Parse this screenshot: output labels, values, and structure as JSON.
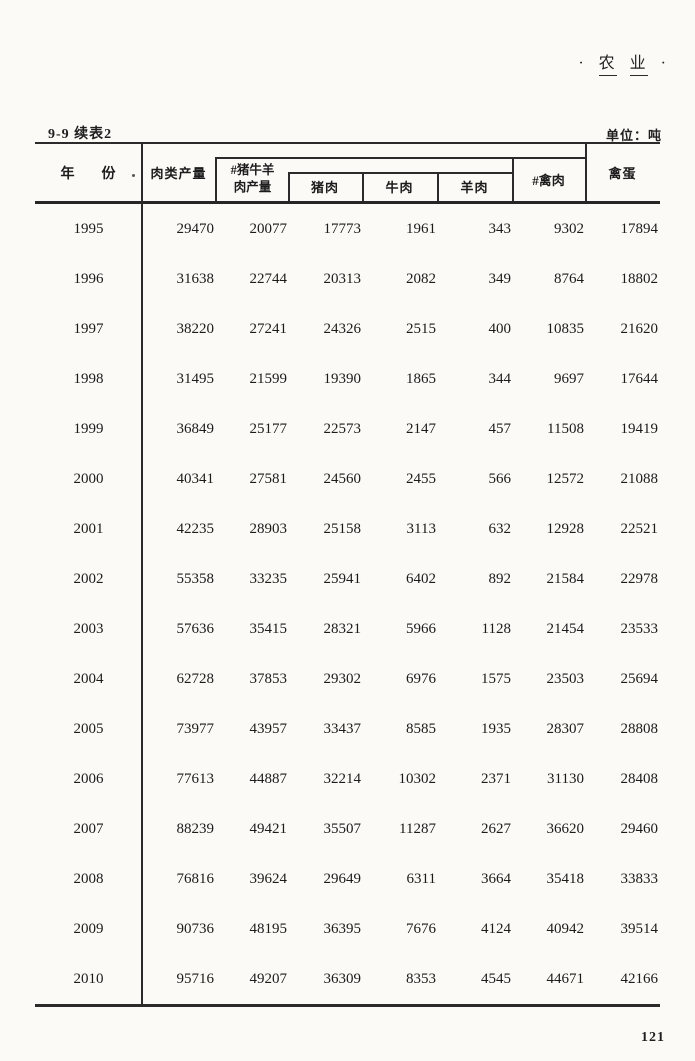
{
  "corner": {
    "left_dot": "·",
    "word1": "农",
    "word2": "业",
    "right_dot": "·"
  },
  "caption": {
    "table_id": "9-9  续表2",
    "unit": "单位：吨"
  },
  "table": {
    "header": {
      "year_char1": "年",
      "year_char2": "份",
      "meat_total": "肉类产量",
      "pbm_line1": "#猪牛羊",
      "pbm_line2": "肉产量",
      "pork": "猪肉",
      "beef": "牛肉",
      "mutton": "羊肉",
      "poultry": "#禽肉",
      "eggs": "禽蛋"
    },
    "rows": [
      {
        "year": "1995",
        "values": [
          29470,
          20077,
          17773,
          1961,
          343,
          9302,
          17894
        ]
      },
      {
        "year": "1996",
        "values": [
          31638,
          22744,
          20313,
          2082,
          349,
          8764,
          18802
        ]
      },
      {
        "year": "1997",
        "values": [
          38220,
          27241,
          24326,
          2515,
          400,
          10835,
          21620
        ]
      },
      {
        "year": "1998",
        "values": [
          31495,
          21599,
          19390,
          1865,
          344,
          9697,
          17644
        ]
      },
      {
        "year": "1999",
        "values": [
          36849,
          25177,
          22573,
          2147,
          457,
          11508,
          19419
        ]
      },
      {
        "year": "2000",
        "values": [
          40341,
          27581,
          24560,
          2455,
          566,
          12572,
          21088
        ]
      },
      {
        "year": "2001",
        "values": [
          42235,
          28903,
          25158,
          3113,
          632,
          12928,
          22521
        ]
      },
      {
        "year": "2002",
        "values": [
          55358,
          33235,
          25941,
          6402,
          892,
          21584,
          22978
        ]
      },
      {
        "year": "2003",
        "values": [
          57636,
          35415,
          28321,
          5966,
          1128,
          21454,
          23533
        ]
      },
      {
        "year": "2004",
        "values": [
          62728,
          37853,
          29302,
          6976,
          1575,
          23503,
          25694
        ]
      },
      {
        "year": "2005",
        "values": [
          73977,
          43957,
          33437,
          8585,
          1935,
          28307,
          28808
        ]
      },
      {
        "year": "2006",
        "values": [
          77613,
          44887,
          32214,
          10302,
          2371,
          31130,
          28408
        ]
      },
      {
        "year": "2007",
        "values": [
          88239,
          49421,
          35507,
          11287,
          2627,
          36620,
          29460
        ]
      },
      {
        "year": "2008",
        "values": [
          76816,
          39624,
          29649,
          6311,
          3664,
          35418,
          33833
        ]
      },
      {
        "year": "2009",
        "values": [
          90736,
          48195,
          36395,
          7676,
          4124,
          40942,
          39514
        ]
      },
      {
        "year": "2010",
        "values": [
          95716,
          49207,
          36309,
          8353,
          4545,
          44671,
          42166
        ]
      }
    ]
  },
  "footer": {
    "page_number": "121"
  }
}
